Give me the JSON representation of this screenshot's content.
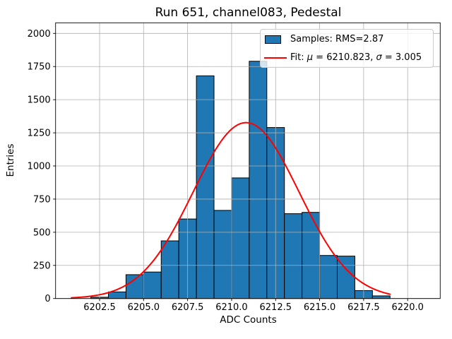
{
  "title": "Run 651, channel083, Pedestal",
  "chart_data": {
    "type": "bar",
    "subtype": "histogram-with-gaussian-fit",
    "title": "Run 651, channel083, Pedestal",
    "xlabel": "ADC Counts",
    "ylabel": "Entries",
    "xlim": [
      6200.0,
      6221.85
    ],
    "ylim": [
      0,
      2080
    ],
    "grid": true,
    "bin_edges": [
      6202,
      6203,
      6204,
      6205,
      6206,
      6207,
      6208,
      6209,
      6210,
      6211,
      6212,
      6213,
      6214,
      6215,
      6216,
      6217,
      6218,
      6219
    ],
    "counts": [
      10,
      50,
      180,
      200,
      435,
      600,
      1680,
      665,
      910,
      1790,
      1290,
      640,
      650,
      325,
      320,
      60,
      20
    ],
    "xticks": {
      "values": [
        6202.5,
        6205.0,
        6207.5,
        6210.0,
        6212.5,
        6215.0,
        6217.5,
        6220.0
      ],
      "labels": [
        "6202.5",
        "6205.0",
        "6207.5",
        "6210.0",
        "6212.5",
        "6215.0",
        "6217.5",
        "6220.0"
      ]
    },
    "yticks": {
      "values": [
        0,
        250,
        500,
        750,
        1000,
        1250,
        1500,
        1750,
        2000
      ],
      "labels": [
        "0",
        "250",
        "500",
        "750",
        "1000",
        "1250",
        "1500",
        "1750",
        "2000"
      ]
    },
    "fit": {
      "type": "gaussian",
      "mu": 6210.823,
      "sigma": 3.005,
      "amplitude": 1327,
      "x_range": [
        6200.9,
        6219.0
      ]
    },
    "legend": {
      "position": "upper right",
      "items": [
        {
          "swatch": "patch",
          "label": "Samples: RMS=2.87"
        },
        {
          "swatch": "line",
          "label": "Fit: μ = 6210.823, σ = 3.005"
        }
      ]
    },
    "colors": {
      "bar_fill": "#1f77b4",
      "bar_edge": "#000000",
      "fit_line": "#ff0000",
      "grid": "#b0b0b0",
      "spine": "#000000",
      "background": "#ffffff"
    }
  }
}
